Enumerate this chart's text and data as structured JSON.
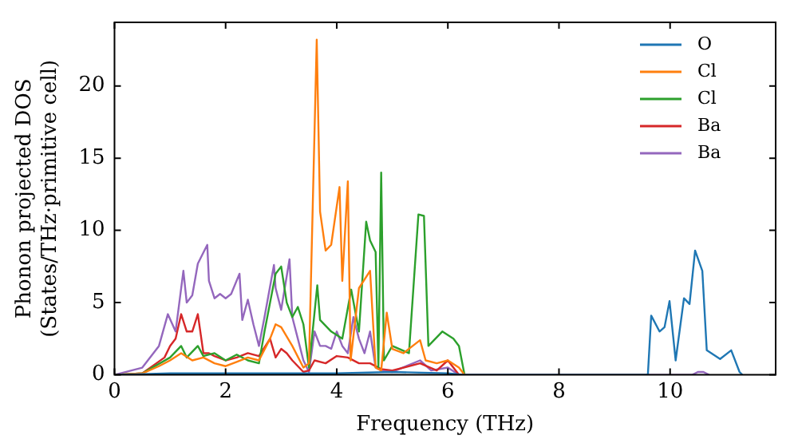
{
  "chart_data": {
    "type": "line",
    "xlabel": "Frequency (THz)",
    "ylabel": "Phonon projected DOS\n(States/THz·primitive cell)",
    "xlim": [
      0,
      11.9
    ],
    "ylim": [
      0,
      24.4
    ],
    "xticks": [
      0,
      2,
      4,
      6,
      8,
      10
    ],
    "yticks": [
      0,
      5,
      10,
      15,
      20
    ],
    "grid": false,
    "legend": "top right",
    "marker": "none",
    "line_style": "solid",
    "series": [
      {
        "name": "O",
        "color": "#1f77b4",
        "x": [
          0,
          1,
          2,
          3,
          4,
          5,
          6,
          6.3,
          9.6,
          9.66,
          9.81,
          9.9,
          9.99,
          10.1,
          10.25,
          10.35,
          10.45,
          10.58,
          10.66,
          10.9,
          11.1,
          11.25,
          11.3
        ],
        "values": [
          0,
          0.1,
          0.1,
          0.1,
          0.1,
          0.2,
          0.1,
          0,
          0,
          4.1,
          3.0,
          3.3,
          5.1,
          1.0,
          5.3,
          4.9,
          8.6,
          7.2,
          1.7,
          1.1,
          1.7,
          0.2,
          0
        ]
      },
      {
        "name": "Cl",
        "color": "#ff7f0e",
        "x": [
          0,
          0.5,
          0.8,
          1.0,
          1.2,
          1.4,
          1.6,
          1.8,
          2.0,
          2.2,
          2.4,
          2.6,
          2.8,
          2.9,
          3.0,
          3.2,
          3.4,
          3.5,
          3.64,
          3.7,
          3.8,
          3.9,
          4.05,
          4.1,
          4.2,
          4.25,
          4.4,
          4.6,
          4.7,
          4.8,
          4.9,
          5.0,
          5.2,
          5.5,
          5.6,
          5.8,
          6.0,
          6.2,
          6.3
        ],
        "values": [
          0,
          0.1,
          0.6,
          1.0,
          1.5,
          1.0,
          1.2,
          0.8,
          0.6,
          0.9,
          1.2,
          1.0,
          2.5,
          3.5,
          3.3,
          2.0,
          0.5,
          0.8,
          23.2,
          11.3,
          8.6,
          9.0,
          13.0,
          6.5,
          13.4,
          1.0,
          6.0,
          7.2,
          0.5,
          0.3,
          4.3,
          1.8,
          1.5,
          2.4,
          1.0,
          0.8,
          1.0,
          0.5,
          0
        ]
      },
      {
        "name": "Cl",
        "color": "#2ca02c",
        "x": [
          0,
          0.5,
          1.0,
          1.2,
          1.3,
          1.5,
          1.6,
          1.8,
          2.0,
          2.2,
          2.4,
          2.6,
          2.7,
          2.8,
          2.9,
          3.0,
          3.1,
          3.2,
          3.3,
          3.4,
          3.5,
          3.65,
          3.7,
          3.9,
          4.1,
          4.26,
          4.4,
          4.53,
          4.6,
          4.7,
          4.75,
          4.8,
          4.85,
          5.0,
          5.3,
          5.47,
          5.57,
          5.65,
          5.9,
          6.1,
          6.2,
          6.3
        ],
        "values": [
          0,
          0.1,
          1.2,
          2.0,
          1.2,
          2.0,
          1.3,
          1.5,
          1.0,
          1.4,
          1.0,
          0.8,
          3.0,
          5.0,
          7.0,
          7.5,
          5.0,
          4.0,
          4.7,
          3.5,
          0.5,
          6.2,
          3.8,
          3.0,
          2.5,
          5.9,
          3.0,
          10.6,
          9.3,
          8.5,
          0.5,
          14.0,
          1.0,
          2.0,
          1.5,
          11.1,
          11.0,
          2.0,
          3.0,
          2.5,
          2.0,
          0
        ]
      },
      {
        "name": "Ba",
        "color": "#d62728",
        "x": [
          0,
          0.5,
          0.9,
          1.0,
          1.1,
          1.2,
          1.3,
          1.4,
          1.5,
          1.6,
          1.7,
          1.8,
          2.0,
          2.2,
          2.4,
          2.6,
          2.8,
          2.9,
          3.0,
          3.1,
          3.2,
          3.4,
          3.5,
          3.6,
          3.8,
          4.0,
          4.2,
          4.4,
          4.6,
          4.8,
          5.0,
          5.5,
          5.8,
          6.0,
          6.2
        ],
        "values": [
          0,
          0.1,
          1.2,
          2.0,
          2.5,
          4.2,
          3.0,
          3.0,
          4.2,
          1.5,
          1.5,
          1.3,
          1.0,
          1.2,
          1.5,
          1.3,
          2.5,
          1.2,
          1.8,
          1.5,
          1.0,
          0.2,
          0.3,
          1.0,
          0.8,
          1.3,
          1.2,
          0.8,
          0.8,
          0.4,
          0.3,
          0.8,
          0.3,
          1.0,
          0
        ]
      },
      {
        "name": "Ba",
        "color": "#9467bd",
        "x": [
          0,
          0.5,
          0.8,
          0.96,
          1.1,
          1.24,
          1.3,
          1.4,
          1.5,
          1.67,
          1.7,
          1.8,
          1.9,
          2.0,
          2.1,
          2.25,
          2.3,
          2.4,
          2.5,
          2.6,
          2.7,
          2.87,
          2.9,
          3.0,
          3.15,
          3.2,
          3.3,
          3.4,
          3.5,
          3.6,
          3.7,
          3.8,
          3.9,
          4.0,
          4.1,
          4.2,
          4.3,
          4.4,
          4.5,
          4.6,
          4.7,
          4.8,
          5.0,
          5.5,
          5.7,
          6.0,
          6.2,
          10.4,
          10.5,
          10.6,
          10.7
        ],
        "values": [
          0,
          0.5,
          2.0,
          4.2,
          3.0,
          7.2,
          5.0,
          5.5,
          7.7,
          9.0,
          6.5,
          5.3,
          5.6,
          5.3,
          5.6,
          7.0,
          3.8,
          5.2,
          3.5,
          2.0,
          4.0,
          7.6,
          6.0,
          4.5,
          8.0,
          4.0,
          2.5,
          1.0,
          0.2,
          3.0,
          2.0,
          2.0,
          1.8,
          3.0,
          2.0,
          1.5,
          4.0,
          2.5,
          1.5,
          3.0,
          0.5,
          0.3,
          0.2,
          1.0,
          0.3,
          0.5,
          0,
          0,
          0.2,
          0.2,
          0
        ]
      }
    ]
  }
}
